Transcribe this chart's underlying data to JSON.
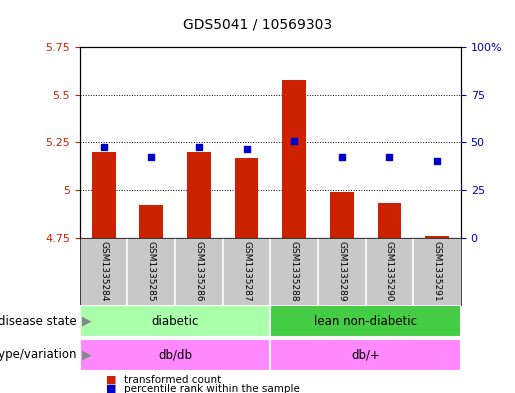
{
  "title": "GDS5041 / 10569303",
  "samples": [
    "GSM1335284",
    "GSM1335285",
    "GSM1335286",
    "GSM1335287",
    "GSM1335288",
    "GSM1335289",
    "GSM1335290",
    "GSM1335291"
  ],
  "red_values": [
    5.2,
    4.92,
    5.2,
    5.17,
    5.58,
    4.99,
    4.93,
    4.76
  ],
  "blue_values": [
    47.5,
    42.5,
    47.5,
    46.5,
    51.0,
    42.5,
    42.5,
    40.5
  ],
  "ylim_left": [
    4.75,
    5.75
  ],
  "ylim_right": [
    0,
    100
  ],
  "yticks_left": [
    4.75,
    5.0,
    5.25,
    5.5,
    5.75
  ],
  "yticks_right": [
    0,
    25,
    50,
    75,
    100
  ],
  "ytick_labels_left": [
    "4.75",
    "5",
    "5.25",
    "5.5",
    "5.75"
  ],
  "ytick_labels_right": [
    "0",
    "25",
    "50",
    "75",
    "100%"
  ],
  "hlines": [
    5.0,
    5.25,
    5.5
  ],
  "bar_color": "#CC2200",
  "bar_bottom": 4.75,
  "blue_color": "#0000CC",
  "disease_states": [
    {
      "label": "diabetic",
      "start": 0,
      "end": 4,
      "color": "#AAFFAA"
    },
    {
      "label": "lean non-diabetic",
      "start": 4,
      "end": 8,
      "color": "#44CC44"
    }
  ],
  "genotype_variations": [
    {
      "label": "db/db",
      "start": 0,
      "end": 4,
      "color": "#FF88FF"
    },
    {
      "label": "db/+",
      "start": 4,
      "end": 8,
      "color": "#FF88FF"
    }
  ],
  "legend_items": [
    {
      "color": "#CC2200",
      "label": "transformed count"
    },
    {
      "color": "#0000CC",
      "label": "percentile rank within the sample"
    }
  ],
  "sample_bg": "#C8C8C8",
  "plot_bg": "#FFFFFF",
  "title_fontsize": 10,
  "tick_fontsize": 8,
  "label_fontsize": 8.5,
  "sample_fontsize": 6.5,
  "row_label_fontsize": 8.5
}
